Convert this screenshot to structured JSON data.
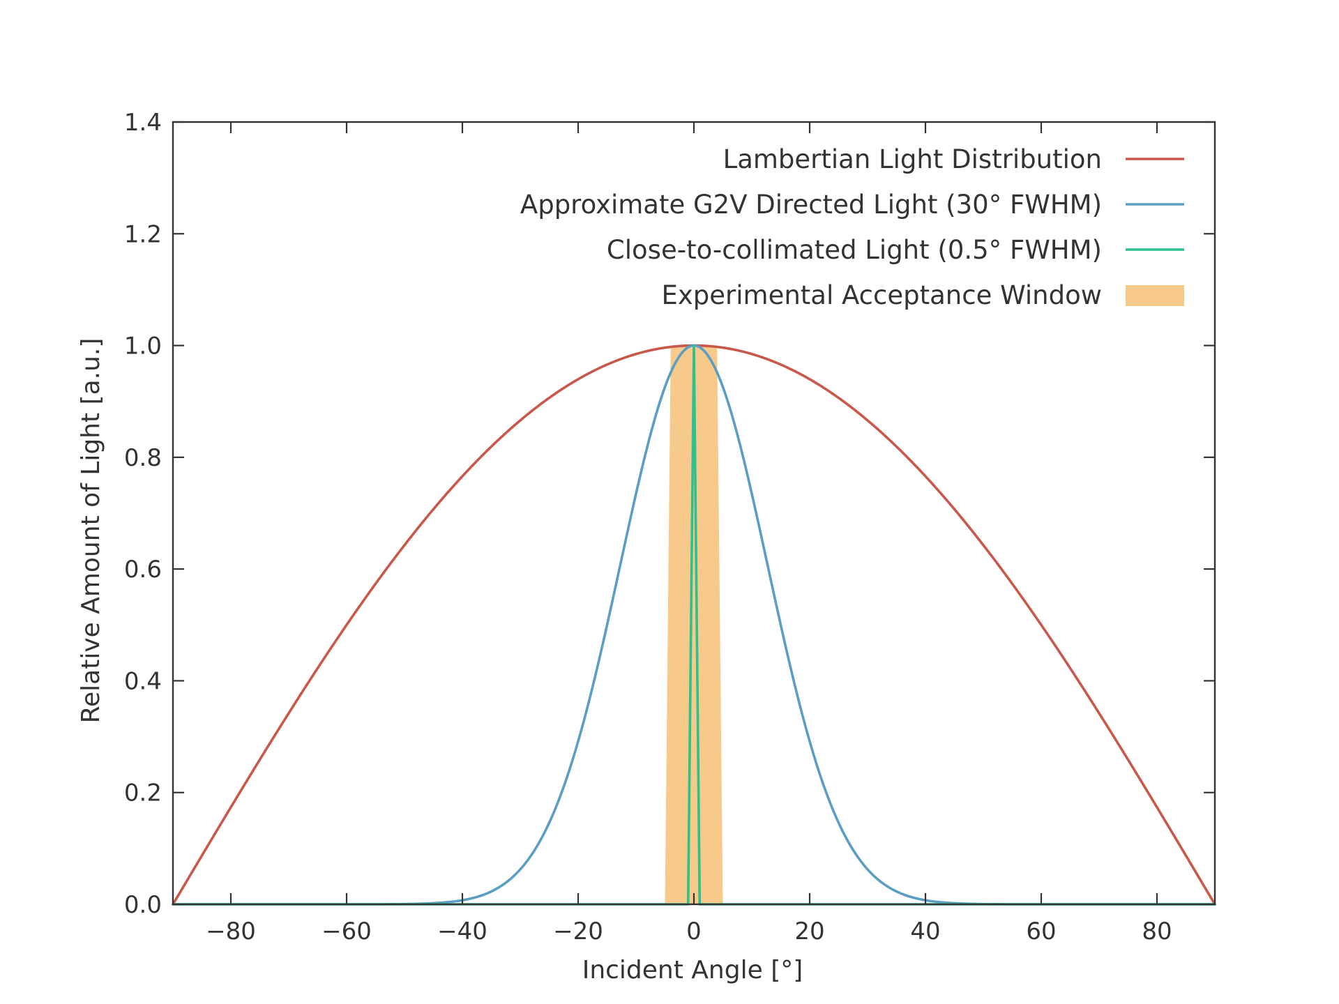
{
  "chart_data": {
    "type": "line",
    "title": "",
    "xlabel": "Incident Angle [°]",
    "ylabel": "Relative Amount of Light [a.u.]",
    "xlim": [
      -90,
      90
    ],
    "ylim": [
      0,
      1.4
    ],
    "x_ticks": [
      -80,
      -60,
      -40,
      -20,
      0,
      20,
      40,
      60,
      80
    ],
    "x_tick_labels": [
      "−80",
      "−60",
      "−40",
      "−20",
      "0",
      "20",
      "40",
      "60",
      "80"
    ],
    "y_ticks": [
      0,
      0.2,
      0.4,
      0.6,
      0.8,
      1.0,
      1.2,
      1.4
    ],
    "y_tick_labels": [
      "0.0",
      "0.2",
      "0.4",
      "0.6",
      "0.8",
      "1.0",
      "1.2",
      "1.4"
    ],
    "grid": false,
    "legend_position": "top-right",
    "series": [
      {
        "name": "Lambertian Light Distribution",
        "kind": "line",
        "color": "#c9574a",
        "x": [
          -90,
          -80,
          -70,
          -60,
          -50,
          -40,
          -30,
          -20,
          -10,
          0,
          10,
          20,
          30,
          40,
          50,
          60,
          70,
          80,
          90
        ],
        "y": [
          0.0,
          0.174,
          0.342,
          0.5,
          0.643,
          0.766,
          0.866,
          0.94,
          0.985,
          1.0,
          0.985,
          0.94,
          0.866,
          0.766,
          0.643,
          0.5,
          0.342,
          0.174,
          0.0
        ]
      },
      {
        "name": "Approximate G2V Directed Light (30° FWHM)",
        "kind": "line",
        "color": "#5b9ec4",
        "x": [
          -90,
          -60,
          -50,
          -45,
          -40,
          -35,
          -30,
          -25,
          -20,
          -15,
          -10,
          -5,
          0,
          5,
          10,
          15,
          20,
          25,
          30,
          35,
          40,
          45,
          50,
          60,
          90
        ],
        "y": [
          0.0,
          0.0,
          0.002,
          0.005,
          0.012,
          0.03,
          0.069,
          0.14,
          0.26,
          0.43,
          0.63,
          0.83,
          1.0,
          0.83,
          0.63,
          0.43,
          0.26,
          0.14,
          0.069,
          0.03,
          0.012,
          0.005,
          0.002,
          0.0,
          0.0
        ]
      },
      {
        "name": "Close-to-collimated Light (0.5° FWHM)",
        "kind": "line",
        "color": "#2ec08e",
        "x": [
          -90,
          -1,
          0,
          1,
          90
        ],
        "y": [
          0.0,
          0.0,
          1.0,
          0.0,
          0.0
        ]
      },
      {
        "name": "Experimental Acceptance Window",
        "kind": "band",
        "color": "#f7c98a",
        "polygon": [
          [
            -5,
            0
          ],
          [
            5,
            0
          ],
          [
            4,
            1.0
          ],
          [
            -4,
            1.0
          ]
        ]
      }
    ]
  }
}
